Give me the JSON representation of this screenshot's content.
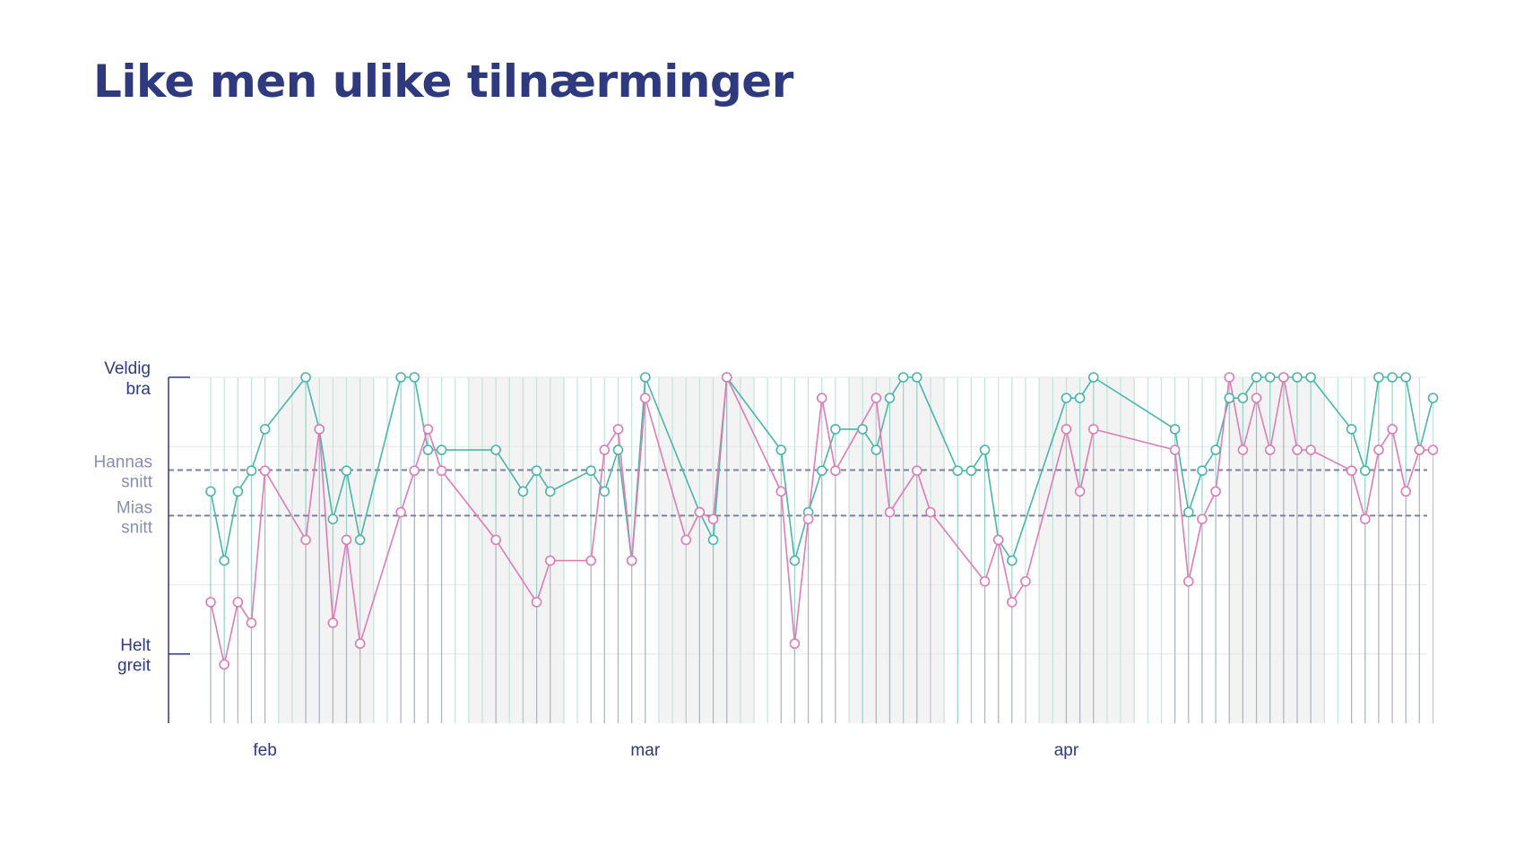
{
  "title": "Like men ulike tilnærminger",
  "chart_data": {
    "type": "line",
    "title": "Like men ulike tilnærminger",
    "y_categories": {
      "top": [
        "Veldig",
        "bra"
      ],
      "bottom": [
        "Helt",
        "greit"
      ]
    },
    "reference_lines": [
      {
        "label": [
          "Hannas",
          "snitt"
        ],
        "value": 3.66
      },
      {
        "label": [
          "Mias",
          "snitt"
        ],
        "value": 3.0
      }
    ],
    "x_ticks": [
      {
        "label": "feb",
        "date": "2022-02-04"
      },
      {
        "label": "mar",
        "date": "2022-03-04"
      },
      {
        "label": "apr",
        "date": "2022-04-04"
      }
    ],
    "ylim": [
      0,
      5
    ],
    "x_range": [
      "2022-01-29",
      "2022-05-01"
    ],
    "grid": true,
    "colors": {
      "series_a": "#49b7a8",
      "series_b": "#df7cb6",
      "axis": "#2f3a7e",
      "reference": "#7b7fa8",
      "stripe": "#f3f3f3",
      "stem": "#bfe5de"
    },
    "weekend_bands": [
      [
        "2022-02-05",
        "2022-02-12"
      ],
      [
        "2022-02-19",
        "2022-02-26"
      ],
      [
        "2022-03-05",
        "2022-03-12"
      ],
      [
        "2022-03-19",
        "2022-03-26"
      ],
      [
        "2022-04-02",
        "2022-04-09"
      ],
      [
        "2022-04-16",
        "2022-04-23"
      ]
    ],
    "stem_dates": [
      "2022-01-31",
      "2022-02-01",
      "2022-02-02",
      "2022-02-03",
      "2022-02-04",
      "2022-02-05",
      "2022-02-06",
      "2022-02-07",
      "2022-02-08",
      "2022-02-09",
      "2022-02-10",
      "2022-02-11",
      "2022-02-12",
      "2022-02-13",
      "2022-02-14",
      "2022-02-15",
      "2022-02-16",
      "2022-02-17",
      "2022-02-18",
      "2022-02-19",
      "2022-02-20",
      "2022-02-21",
      "2022-02-22",
      "2022-02-23",
      "2022-02-24",
      "2022-02-25",
      "2022-02-26",
      "2022-02-27",
      "2022-02-28",
      "2022-03-01",
      "2022-03-02",
      "2022-03-03",
      "2022-03-04",
      "2022-03-05",
      "2022-03-06",
      "2022-03-07",
      "2022-03-08",
      "2022-03-09",
      "2022-03-10",
      "2022-03-11",
      "2022-03-12",
      "2022-03-13",
      "2022-03-14",
      "2022-03-15",
      "2022-03-16",
      "2022-03-17",
      "2022-03-18",
      "2022-03-19",
      "2022-03-20",
      "2022-03-21",
      "2022-03-22",
      "2022-03-23",
      "2022-03-24",
      "2022-03-25",
      "2022-03-26",
      "2022-03-27",
      "2022-03-28",
      "2022-03-29",
      "2022-03-30",
      "2022-03-31",
      "2022-04-01",
      "2022-04-02",
      "2022-04-03",
      "2022-04-04",
      "2022-04-05",
      "2022-04-06",
      "2022-04-07",
      "2022-04-08",
      "2022-04-09",
      "2022-04-10",
      "2022-04-11",
      "2022-04-12",
      "2022-04-13",
      "2022-04-14",
      "2022-04-15",
      "2022-04-16",
      "2022-04-17",
      "2022-04-18",
      "2022-04-19",
      "2022-04-20",
      "2022-04-21",
      "2022-04-22",
      "2022-04-23",
      "2022-04-24",
      "2022-04-25",
      "2022-04-26",
      "2022-04-27",
      "2022-04-28",
      "2022-04-29",
      "2022-04-30"
    ],
    "series": [
      {
        "color": "#49b7a8",
        "points": [
          [
            "2022-01-31",
            3.35
          ],
          [
            "2022-02-01",
            2.35
          ],
          [
            "2022-02-02",
            3.35
          ],
          [
            "2022-02-03",
            3.65
          ],
          [
            "2022-02-04",
            4.25
          ],
          [
            "2022-02-07",
            5.0
          ],
          [
            "2022-02-08",
            4.25
          ],
          [
            "2022-02-09",
            2.95
          ],
          [
            "2022-02-10",
            3.65
          ],
          [
            "2022-02-11",
            2.65
          ],
          [
            "2022-02-14",
            5.0
          ],
          [
            "2022-02-15",
            5.0
          ],
          [
            "2022-02-16",
            3.95
          ],
          [
            "2022-02-17",
            3.95
          ],
          [
            "2022-02-21",
            3.95
          ],
          [
            "2022-02-23",
            3.35
          ],
          [
            "2022-02-24",
            3.65
          ],
          [
            "2022-02-25",
            3.35
          ],
          [
            "2022-02-28",
            3.65
          ],
          [
            "2022-03-01",
            3.35
          ],
          [
            "2022-03-02",
            3.95
          ],
          [
            "2022-03-03",
            2.35
          ],
          [
            "2022-03-04",
            5.0
          ],
          [
            "2022-03-08",
            3.05
          ],
          [
            "2022-03-09",
            2.65
          ],
          [
            "2022-03-10",
            5.0
          ],
          [
            "2022-03-14",
            3.95
          ],
          [
            "2022-03-15",
            2.35
          ],
          [
            "2022-03-16",
            3.05
          ],
          [
            "2022-03-17",
            3.65
          ],
          [
            "2022-03-18",
            4.25
          ],
          [
            "2022-03-20",
            4.25
          ],
          [
            "2022-03-21",
            3.95
          ],
          [
            "2022-03-22",
            4.7
          ],
          [
            "2022-03-23",
            5.0
          ],
          [
            "2022-03-24",
            5.0
          ],
          [
            "2022-03-27",
            3.65
          ],
          [
            "2022-03-28",
            3.65
          ],
          [
            "2022-03-29",
            3.95
          ],
          [
            "2022-03-30",
            2.65
          ],
          [
            "2022-03-31",
            2.35
          ],
          [
            "2022-04-04",
            4.7
          ],
          [
            "2022-04-05",
            4.7
          ],
          [
            "2022-04-06",
            5.0
          ],
          [
            "2022-04-12",
            4.25
          ],
          [
            "2022-04-13",
            3.05
          ],
          [
            "2022-04-14",
            3.65
          ],
          [
            "2022-04-15",
            3.95
          ],
          [
            "2022-04-16",
            4.7
          ],
          [
            "2022-04-17",
            4.7
          ],
          [
            "2022-04-18",
            5.0
          ],
          [
            "2022-04-19",
            5.0
          ],
          [
            "2022-04-20",
            5.0
          ],
          [
            "2022-04-21",
            5.0
          ],
          [
            "2022-04-22",
            5.0
          ],
          [
            "2022-04-25",
            4.25
          ],
          [
            "2022-04-26",
            3.65
          ],
          [
            "2022-04-27",
            5.0
          ],
          [
            "2022-04-28",
            5.0
          ],
          [
            "2022-04-29",
            5.0
          ],
          [
            "2022-04-30",
            3.95
          ],
          [
            "2022-05-01",
            4.7
          ]
        ]
      },
      {
        "color": "#df7cb6",
        "points": [
          [
            "2022-01-31",
            1.75
          ],
          [
            "2022-02-01",
            0.85
          ],
          [
            "2022-02-02",
            1.75
          ],
          [
            "2022-02-03",
            1.45
          ],
          [
            "2022-02-04",
            3.65
          ],
          [
            "2022-02-07",
            2.65
          ],
          [
            "2022-02-08",
            4.25
          ],
          [
            "2022-02-09",
            1.45
          ],
          [
            "2022-02-10",
            2.65
          ],
          [
            "2022-02-11",
            1.15
          ],
          [
            "2022-02-14",
            3.05
          ],
          [
            "2022-02-15",
            3.65
          ],
          [
            "2022-02-16",
            4.25
          ],
          [
            "2022-02-17",
            3.65
          ],
          [
            "2022-02-21",
            2.65
          ],
          [
            "2022-02-24",
            1.75
          ],
          [
            "2022-02-25",
            2.35
          ],
          [
            "2022-02-28",
            2.35
          ],
          [
            "2022-03-01",
            3.95
          ],
          [
            "2022-03-02",
            4.25
          ],
          [
            "2022-03-03",
            2.35
          ],
          [
            "2022-03-04",
            4.7
          ],
          [
            "2022-03-07",
            2.65
          ],
          [
            "2022-03-08",
            3.05
          ],
          [
            "2022-03-09",
            2.95
          ],
          [
            "2022-03-10",
            5.0
          ],
          [
            "2022-03-14",
            3.35
          ],
          [
            "2022-03-15",
            1.15
          ],
          [
            "2022-03-16",
            2.95
          ],
          [
            "2022-03-17",
            4.7
          ],
          [
            "2022-03-18",
            3.65
          ],
          [
            "2022-03-21",
            4.7
          ],
          [
            "2022-03-22",
            3.05
          ],
          [
            "2022-03-24",
            3.65
          ],
          [
            "2022-03-25",
            3.05
          ],
          [
            "2022-03-29",
            2.05
          ],
          [
            "2022-03-30",
            2.65
          ],
          [
            "2022-03-31",
            1.75
          ],
          [
            "2022-04-01",
            2.05
          ],
          [
            "2022-04-04",
            4.25
          ],
          [
            "2022-04-05",
            3.35
          ],
          [
            "2022-04-06",
            4.25
          ],
          [
            "2022-04-12",
            3.95
          ],
          [
            "2022-04-13",
            2.05
          ],
          [
            "2022-04-14",
            2.95
          ],
          [
            "2022-04-15",
            3.35
          ],
          [
            "2022-04-16",
            5.0
          ],
          [
            "2022-04-17",
            3.95
          ],
          [
            "2022-04-18",
            4.7
          ],
          [
            "2022-04-19",
            3.95
          ],
          [
            "2022-04-20",
            5.0
          ],
          [
            "2022-04-21",
            3.95
          ],
          [
            "2022-04-22",
            3.95
          ],
          [
            "2022-04-25",
            3.65
          ],
          [
            "2022-04-26",
            2.95
          ],
          [
            "2022-04-27",
            3.95
          ],
          [
            "2022-04-28",
            4.25
          ],
          [
            "2022-04-29",
            3.35
          ],
          [
            "2022-04-30",
            3.95
          ],
          [
            "2022-05-01",
            3.95
          ]
        ]
      }
    ]
  }
}
